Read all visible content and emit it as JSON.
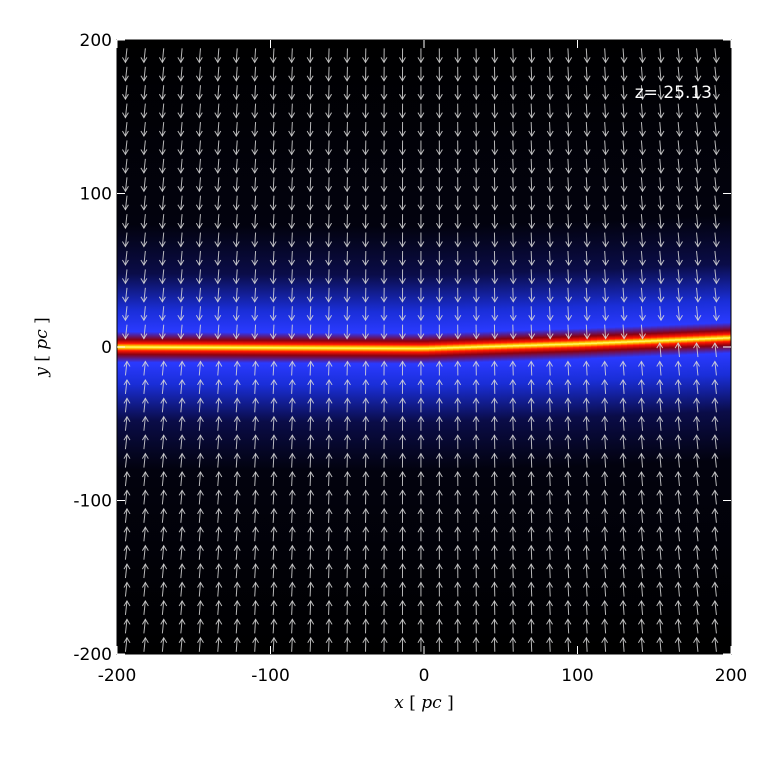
{
  "chart_data": {
    "type": "heatmap",
    "title": "",
    "annotation": "z= 25.13",
    "xlabel": {
      "var": "x",
      "open": "[",
      "unit": "pc",
      "close": "]"
    },
    "ylabel": {
      "var": "y",
      "open": "[",
      "unit": "pc",
      "close": "]"
    },
    "xlim": [
      -200,
      200
    ],
    "ylim": [
      -200,
      200
    ],
    "xticks": [
      -200,
      -100,
      0,
      100,
      200
    ],
    "yticks": [
      -200,
      -100,
      0,
      100,
      200
    ],
    "xtick_labels": [
      "-200",
      "-100",
      "0",
      "100",
      "200"
    ],
    "ytick_labels": [
      "-200",
      "-100",
      "0",
      "100",
      "200"
    ],
    "grid": false,
    "colormap": [
      "#000000",
      "#0a0a4a",
      "#1a33ff",
      "#a00000",
      "#ff1a00",
      "#ffd000",
      "#ffff66"
    ],
    "density_profile": {
      "description_units": "pc",
      "layer_center_y": [
        [
          -200,
          0
        ],
        [
          0,
          -1
        ],
        [
          100,
          2
        ],
        [
          200,
          6
        ]
      ],
      "core_half_width": 4,
      "envelope_half_width": 28
    },
    "vector_field": {
      "color": "#d8d8d8",
      "x_spacing": 12,
      "y_spacing": 12,
      "flow": "toward_midplane"
    }
  }
}
